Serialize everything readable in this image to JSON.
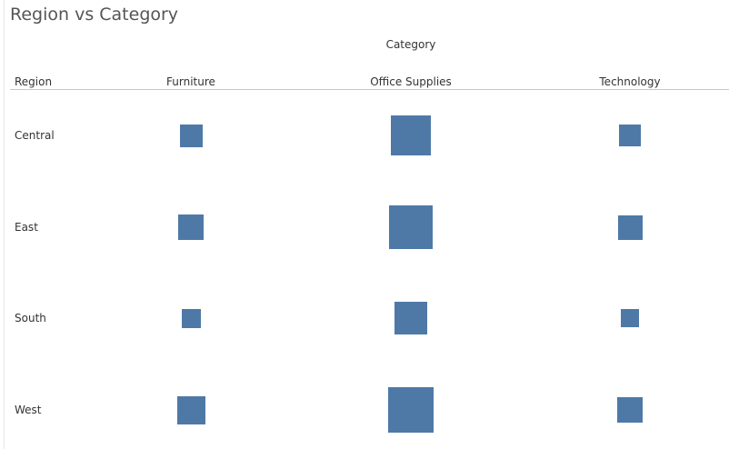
{
  "title": "Region vs Category",
  "colors": {
    "mark": "#4e79a7",
    "title": "#555555",
    "text": "#333333",
    "rule": "#c8c8c8"
  },
  "chart_data": {
    "type": "heatmap",
    "mark_shape": "square",
    "encoding": "square size (area) indicates relative magnitude",
    "title": "Region vs Category",
    "column_field": "Category",
    "row_field": "Region",
    "columns": [
      "Furniture",
      "Office Supplies",
      "Technology"
    ],
    "rows": [
      "Central",
      "East",
      "South",
      "West"
    ],
    "relative_side": [
      [
        0.5,
        0.88,
        0.48
      ],
      [
        0.56,
        0.96,
        0.54
      ],
      [
        0.42,
        0.72,
        0.4
      ],
      [
        0.62,
        1.0,
        0.56
      ]
    ],
    "legend": "none",
    "grid": false
  }
}
